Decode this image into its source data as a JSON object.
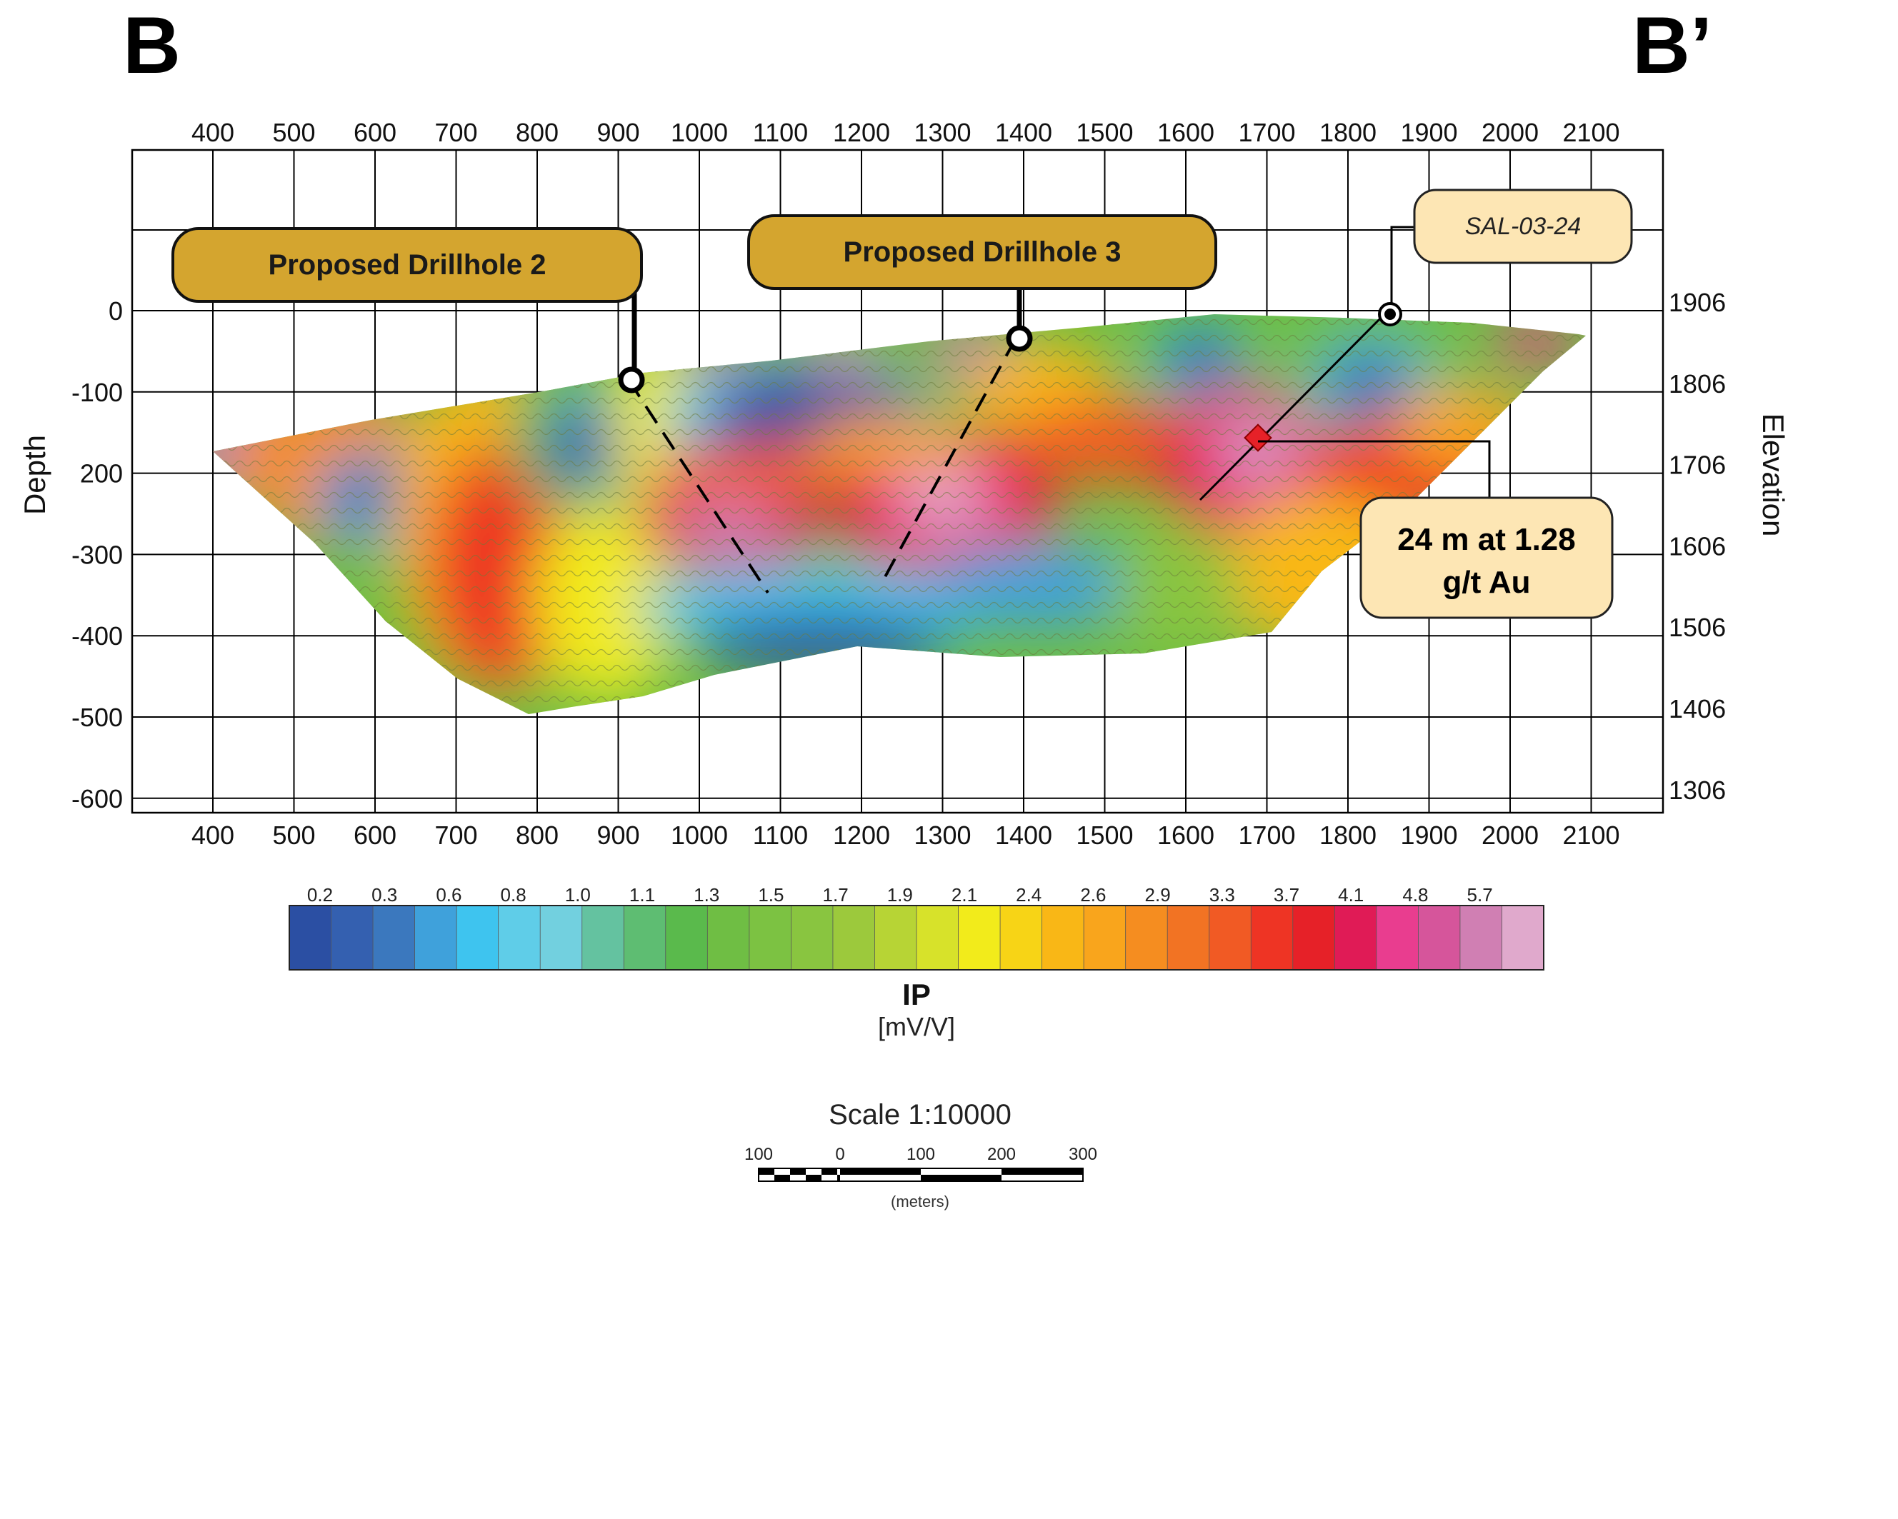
{
  "section": {
    "left_label": "B",
    "right_label": "B’"
  },
  "axes": {
    "x_ticks": [
      "400",
      "500",
      "600",
      "700",
      "800",
      "900",
      "1000",
      "1100",
      "1200",
      "1300",
      "1400",
      "1500",
      "1600",
      "1700",
      "1800",
      "1900",
      "2000",
      "2100"
    ],
    "depth_title": "Depth",
    "depth_ticks": [
      "0",
      "-100",
      "200",
      "-300",
      "-400",
      "-500",
      "-600"
    ],
    "elevation_title": "Elevation",
    "elevation_ticks": [
      "1906",
      "1806",
      "1706",
      "1606",
      "1506",
      "1406",
      "1306"
    ]
  },
  "callouts": {
    "drillhole2": "Proposed Drillhole 2",
    "drillhole3": "Proposed Drillhole 3",
    "hole_id": "SAL-03-24",
    "intercept_line1": "24 m at 1.28",
    "intercept_line2": "g/t Au"
  },
  "colorbar": {
    "labels": [
      "0.2",
      "0.3",
      "0.6",
      "0.8",
      "1.0",
      "1.1",
      "1.3",
      "1.5",
      "1.7",
      "1.9",
      "2.1",
      "2.4",
      "2.6",
      "2.9",
      "3.3",
      "3.7",
      "4.1",
      "4.8",
      "5.7"
    ],
    "colors": [
      "#2b4fa3",
      "#3460b0",
      "#3b78be",
      "#3fa1db",
      "#3ec4ef",
      "#5fcde8",
      "#72d0df",
      "#64c2a0",
      "#5ebd72",
      "#5aba4c",
      "#6fbe44",
      "#7cc242",
      "#89c540",
      "#9cc93c",
      "#b7d435",
      "#d7e22a",
      "#f2eb1b",
      "#f7d416",
      "#f9b716",
      "#f9a51c",
      "#f58d20",
      "#f27323",
      "#f15a24",
      "#ee3424",
      "#e62128",
      "#e01b56",
      "#e93d8f",
      "#d6559b",
      "#d07fb3",
      "#e0a9cc"
    ],
    "title": "IP",
    "unit": "[mV/V]"
  },
  "scale": {
    "title": "Scale 1:10000",
    "labels": [
      "100",
      "0",
      "100",
      "200",
      "300"
    ],
    "unit": "(meters)"
  }
}
